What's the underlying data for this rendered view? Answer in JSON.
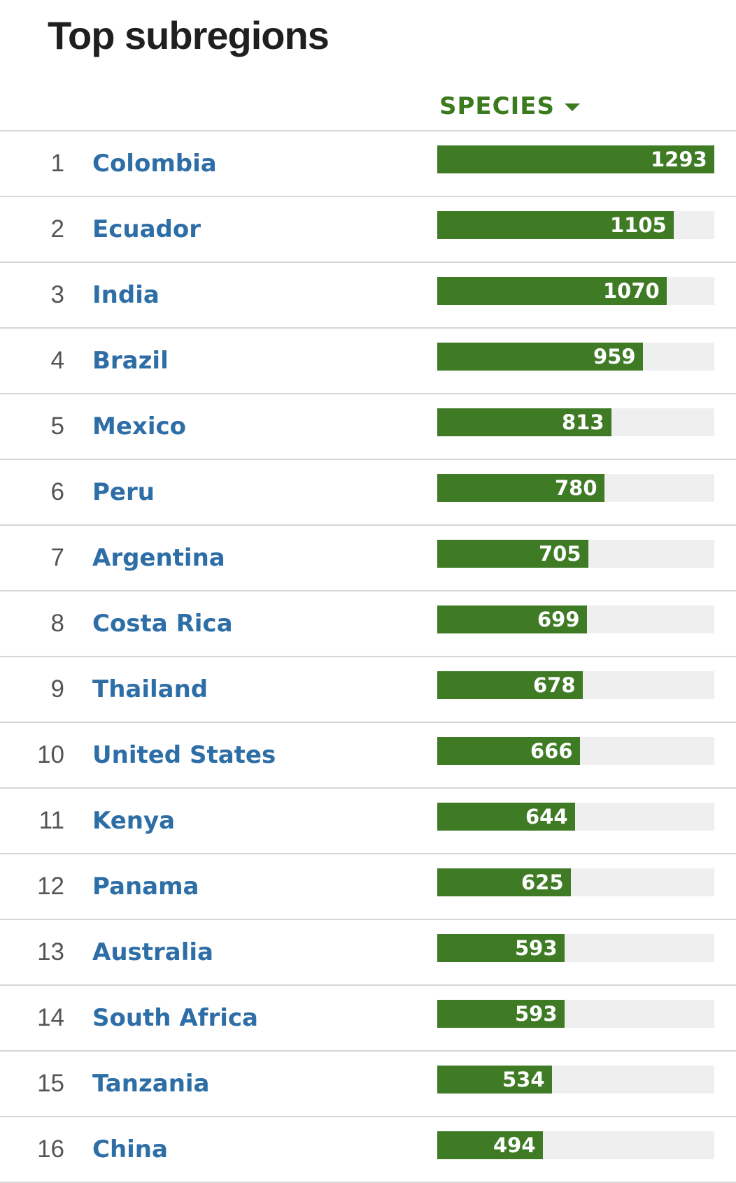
{
  "header": {
    "title": "Top subregions",
    "column_label": "SPECIES",
    "sort_icon": "caret-down-icon"
  },
  "colors": {
    "bar_fill": "#3e7b24",
    "bar_track": "#efefef",
    "link": "#2e6ea7",
    "header_accent": "#3b7a1d"
  },
  "scale_max": 1293,
  "rows": [
    {
      "rank": "1",
      "name": "Colombia",
      "value": 1293
    },
    {
      "rank": "2",
      "name": "Ecuador",
      "value": 1105
    },
    {
      "rank": "3",
      "name": "India",
      "value": 1070
    },
    {
      "rank": "4",
      "name": "Brazil",
      "value": 959
    },
    {
      "rank": "5",
      "name": "Mexico",
      "value": 813
    },
    {
      "rank": "6",
      "name": "Peru",
      "value": 780
    },
    {
      "rank": "7",
      "name": "Argentina",
      "value": 705
    },
    {
      "rank": "8",
      "name": "Costa Rica",
      "value": 699
    },
    {
      "rank": "9",
      "name": "Thailand",
      "value": 678
    },
    {
      "rank": "10",
      "name": "United States",
      "value": 666
    },
    {
      "rank": "11",
      "name": "Kenya",
      "value": 644
    },
    {
      "rank": "12",
      "name": "Panama",
      "value": 625
    },
    {
      "rank": "13",
      "name": "Australia",
      "value": 593
    },
    {
      "rank": "14",
      "name": "South Africa",
      "value": 593
    },
    {
      "rank": "15",
      "name": "Tanzania",
      "value": 534
    },
    {
      "rank": "16",
      "name": "China",
      "value": 494
    }
  ]
}
